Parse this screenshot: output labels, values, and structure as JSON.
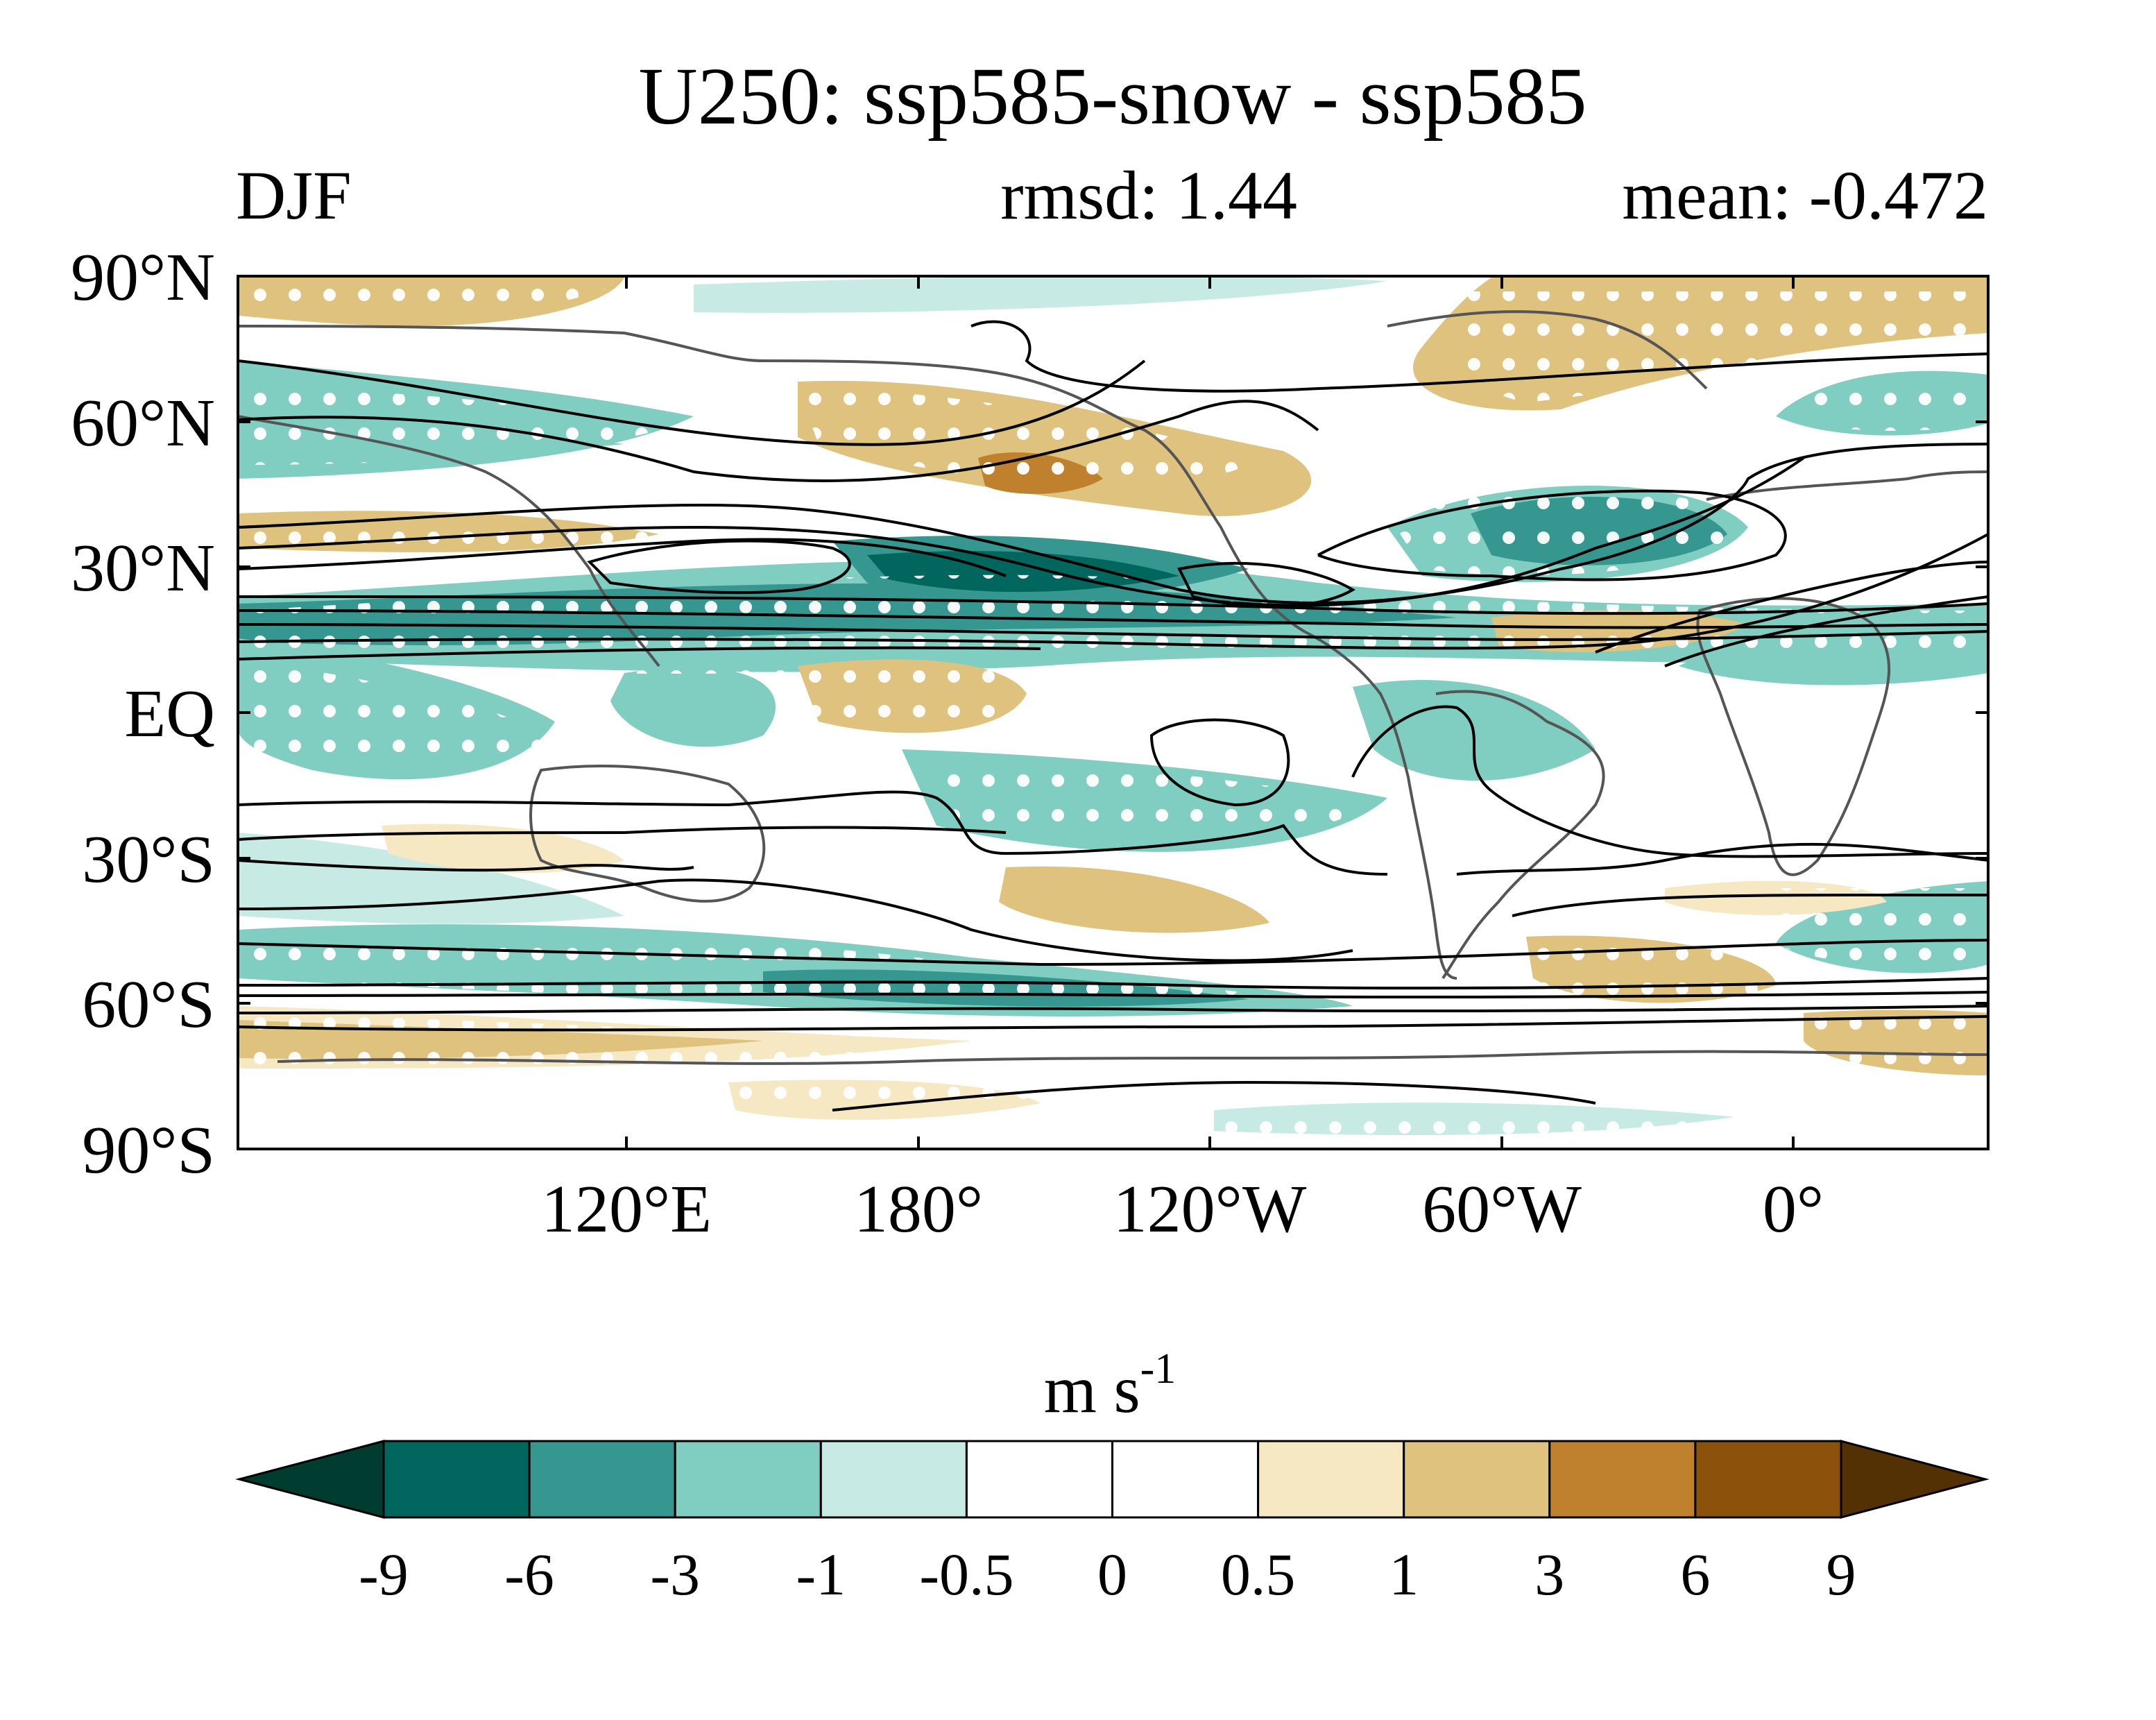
{
  "title": "U250: ssp585-snow - ssp585",
  "season": "DJF",
  "rmsd_label": "rmsd: 1.44",
  "mean_label": "mean: -0.472",
  "map": {
    "lat_labels": [
      "90°N",
      "60°N",
      "30°N",
      "EQ",
      "30°S",
      "60°S",
      "90°S"
    ],
    "lon_labels": [
      "120°E",
      "180°",
      "120°W",
      "60°W",
      "0°"
    ],
    "stippling": "white dots mark significant anomalies",
    "contours": "black lines show ssp585 climatological U250 jet",
    "coastline_color": "#555555"
  },
  "colorbar": {
    "units_base": "m s",
    "units_exp": "-1",
    "ticks": [
      "-9",
      "-6",
      "-3",
      "-1",
      "-0.5",
      "0",
      "0.5",
      "1",
      "3",
      "6",
      "9"
    ],
    "colors": [
      "#003c30",
      "#01665e",
      "#35978f",
      "#80cdc1",
      "#c7eae5",
      "#ffffff",
      "#ffffff",
      "#f6e8c3",
      "#dfc27d",
      "#bf812d",
      "#8c510a",
      "#543005"
    ]
  }
}
